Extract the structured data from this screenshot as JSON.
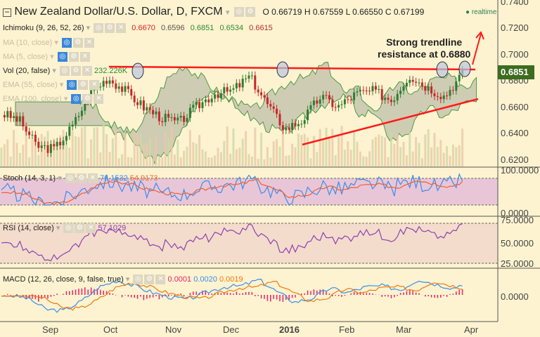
{
  "header": {
    "title": "New Zealand Dollar/U.S. Dollar, D, FXCM",
    "ohlc": [
      "O 0.66719",
      "H 0.67559",
      "L 0.66550",
      "C 0.67199"
    ],
    "realtime": "realtime"
  },
  "indicators": {
    "ichimoku": {
      "label": "Ichimoku (9, 26, 52, 26)",
      "values": [
        "0.6670",
        "0.6596",
        "0.6851",
        "0.6534",
        "0.6615"
      ],
      "colors": [
        "#e02020",
        "#555555",
        "#2e8b2e",
        "#2e8b2e",
        "#b03030"
      ]
    },
    "ma10": "MA (10, close)",
    "ma5": "MA (5, close)",
    "vol": {
      "label": "Vol (20, false)",
      "value": "232.226K"
    },
    "ema55": "EMA (55, close)",
    "ema100": "EMA (100, close)",
    "stoch": {
      "label": "Stoch (14, 3, 1)",
      "k": "76.1532",
      "d": "54.9173"
    },
    "rsi": {
      "label": "RSI (14, close)",
      "value": "57.1029"
    },
    "macd": {
      "label": "MACD (12, 26, close, 9, false, true)",
      "hist": "0.0001",
      "macd": "0.0020",
      "signal": "0.0019"
    }
  },
  "annotation": "Strong trendline\nresistance at 0.6880",
  "price_axis": [
    "0.7400",
    "0.7200",
    "0.7000",
    "0.6800",
    "0.6600",
    "0.6400",
    "0.6200"
  ],
  "current_price": "0.6851",
  "stoch_axis": [
    "100.0000",
    "0.0000"
  ],
  "rsi_axis": [
    "75.0000",
    "50.0000",
    "25.0000"
  ],
  "macd_axis": [
    "0.0000"
  ],
  "months": [
    "Sep",
    "Oct",
    "Nov",
    "Dec",
    "2016",
    "Feb",
    "Mar",
    "Apr"
  ],
  "colors": {
    "up": "#2e7d32",
    "down": "#c62828",
    "trend": "#ff1a1a",
    "badge": "#3d6b1f"
  },
  "closes": [
    0.655,
    0.65,
    0.63,
    0.628,
    0.645,
    0.67,
    0.682,
    0.672,
    0.66,
    0.652,
    0.648,
    0.66,
    0.67,
    0.672,
    0.683,
    0.662,
    0.643,
    0.65,
    0.668,
    0.66,
    0.67,
    0.672,
    0.665,
    0.684,
    0.675,
    0.668,
    0.685
  ]
}
